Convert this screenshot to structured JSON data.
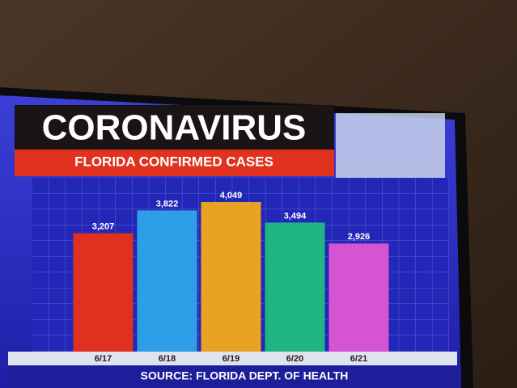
{
  "chart_data": {
    "type": "bar",
    "title": "CORONAVIRUS",
    "subtitle": "FLORIDA CONFIRMED CASES",
    "source": "SOURCE: FLORIDA DEPT. OF HEALTH",
    "categories": [
      "6/17",
      "6/18",
      "6/19",
      "6/20",
      "6/21"
    ],
    "values": [
      3207,
      3822,
      4049,
      3494,
      2926
    ],
    "value_labels": [
      "3,207",
      "3,822",
      "4,049",
      "3,494",
      "2,926"
    ],
    "colors": [
      "#e0301e",
      "#2e9fe6",
      "#e8a324",
      "#1fb584",
      "#d454d4"
    ],
    "grid": true
  }
}
